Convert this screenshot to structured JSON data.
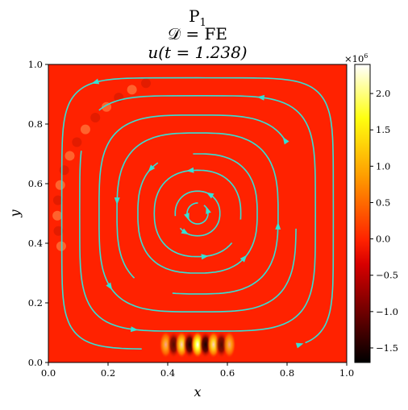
{
  "chart_data": {
    "type": "heatmap",
    "title_lines": [
      "P",
      "𝒟 = FE",
      "u(t = 1.238)"
    ],
    "title_subscript": "1",
    "xlabel": "x",
    "ylabel": "y",
    "xlim": [
      0,
      1
    ],
    "ylim": [
      0,
      1
    ],
    "x_ticks": [
      "0.0",
      "0.2",
      "0.4",
      "0.6",
      "0.8",
      "1.0"
    ],
    "y_ticks": [
      "0.0",
      "0.2",
      "0.4",
      "0.6",
      "0.8",
      "1.0"
    ],
    "colorbar": {
      "multiplier": "×10",
      "multiplier_exp": "6",
      "range": [
        -1.7,
        2.4
      ],
      "ticks": [
        -1.5,
        -1.0,
        -0.5,
        0.0,
        0.5,
        1.0,
        1.5,
        2.0
      ],
      "tick_labels": [
        "−1.5",
        "−1.0",
        "−0.5",
        "0.0",
        "0.5",
        "1.0",
        "1.5",
        "2.0"
      ],
      "colormap": "hot"
    },
    "field": {
      "background_value": 0.0,
      "hot_band": {
        "x_range": [
          0.38,
          0.62
        ],
        "y_range": [
          0.02,
          0.1
        ],
        "peak": 2.4,
        "trough": -1.5
      },
      "ripple_arc": {
        "x_range": [
          0.0,
          0.35
        ],
        "y_range": [
          0.2,
          0.6
        ],
        "amplitude": 0.35
      }
    },
    "streamlines": {
      "color": "#35e0d5",
      "center": [
        0.5,
        0.5
      ],
      "type": "circular-vortex",
      "rotation": "counterclockwise"
    }
  }
}
